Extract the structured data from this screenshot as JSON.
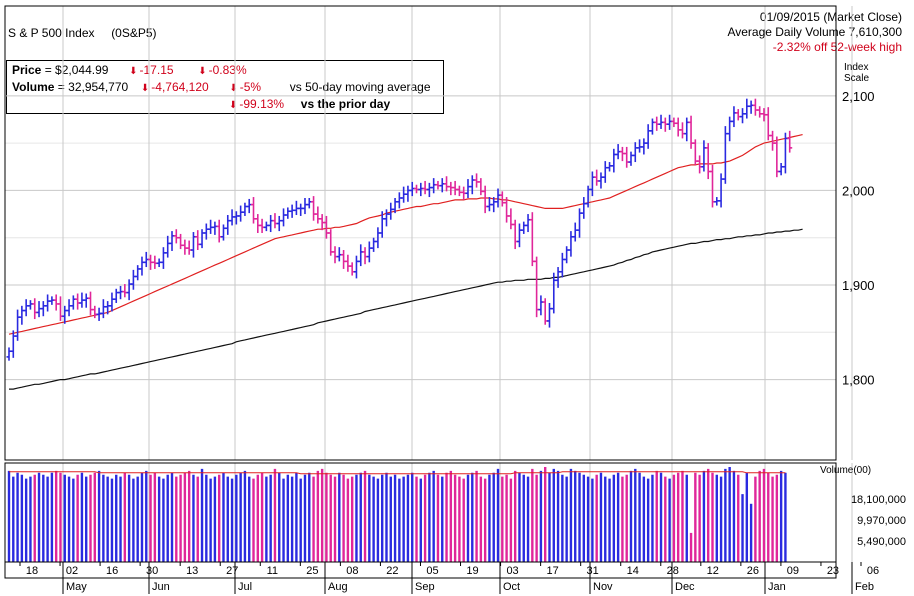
{
  "header": {
    "title": "S & P 500 Index",
    "symbol": "(0S&P5)",
    "date_line": "01/09/2015 (Market Close)",
    "avg_volume_line": "Average Daily Volume 7,610,300",
    "high_line": "-2.32% off 52-week high"
  },
  "info": {
    "price_label": "Price",
    "price_value": "= $2,044.99",
    "price_change": "-17.15",
    "price_change_pct": "-0.83%",
    "volume_label": "Volume",
    "volume_value": "= 32,954,770",
    "volume_change": "-4,764,120",
    "volume_vs50_pct": "-5%",
    "volume_vs50_text": "vs 50-day moving average",
    "volume_vsprior_pct": "-99.13%",
    "volume_vsprior_text": "vs the prior day"
  },
  "colors": {
    "up": "#2a2ae0",
    "down": "#e0269a",
    "ma50": "#e02020",
    "ma200": "#111111",
    "grid": "#c8c8c8"
  },
  "chart_data": {
    "type": "ohlc",
    "price_axis_label": "Index Scale",
    "volume_axis_label": "Volume(00)",
    "yticks": [
      1800,
      1900,
      2000,
      2100
    ],
    "ytick_labels": [
      "1,800",
      "1,900",
      "2,000",
      "2,100"
    ],
    "ylim": [
      1715,
      2140
    ],
    "volume_ticks": [
      5490000,
      9970000,
      18100000
    ],
    "volume_tick_labels": [
      "5,490,000",
      "9,970,000",
      "18,100,000"
    ],
    "day_ticks": [
      "18",
      "02",
      "16",
      "30",
      "13",
      "27",
      "11",
      "25",
      "08",
      "22",
      "05",
      "19",
      "03",
      "17",
      "31",
      "14",
      "28",
      "12",
      "26",
      "09",
      "23",
      "06"
    ],
    "months": [
      "May",
      "Jun",
      "Jul",
      "Aug",
      "Sep",
      "Oct",
      "Nov",
      "Dec",
      "Jan",
      "Feb"
    ],
    "close": [
      1830,
      1846,
      1866,
      1873,
      1878,
      1880,
      1871,
      1875,
      1878,
      1883,
      1884,
      1880,
      1867,
      1873,
      1878,
      1885,
      1881,
      1884,
      1886,
      1874,
      1869,
      1870,
      1877,
      1878,
      1885,
      1892,
      1893,
      1892,
      1901,
      1909,
      1917,
      1924,
      1927,
      1924,
      1923,
      1924,
      1934,
      1944,
      1952,
      1950,
      1942,
      1939,
      1937,
      1951,
      1943,
      1955,
      1959,
      1961,
      1962,
      1951,
      1960,
      1968,
      1972,
      1973,
      1977,
      1983,
      1985,
      1970,
      1963,
      1961,
      1963,
      1968,
      1965,
      1968,
      1974,
      1978,
      1979,
      1981,
      1981,
      1985,
      1988,
      1975,
      1970,
      1966,
      1955,
      1935,
      1930,
      1932,
      1925,
      1920,
      1914,
      1925,
      1935,
      1930,
      1939,
      1946,
      1955,
      1970,
      1975,
      1980,
      1988,
      1992,
      1996,
      2000,
      2002,
      2001,
      2002,
      2001,
      2003,
      2006,
      2005,
      2007,
      2004,
      2003,
      2001,
      1998,
      1997,
      2004,
      2011,
      2009,
      1999,
      1983,
      1985,
      1988,
      1995,
      1987,
      1973,
      1964,
      1946,
      1958,
      1963,
      1969,
      1925,
      1874,
      1882,
      1862,
      1875,
      1905,
      1914,
      1927,
      1937,
      1951,
      1958,
      1976,
      1986,
      2001,
      2014,
      2010,
      2014,
      2024,
      2026,
      2038,
      2041,
      2039,
      2030,
      2037,
      2045,
      2046,
      2050,
      2063,
      2072,
      2070,
      2072,
      2070,
      2073,
      2071,
      2064,
      2060,
      2072,
      2050,
      2031,
      2025,
      2045,
      2020,
      1988,
      1989,
      2012,
      2060,
      2073,
      2082,
      2078,
      2081,
      2089,
      2090,
      2085,
      2081,
      2080,
      2058,
      2050,
      2020,
      2025,
      2055,
      2045
    ],
    "ma50": [
      1848,
      1849,
      1850,
      1851,
      1852,
      1853,
      1854,
      1855,
      1856,
      1857,
      1858,
      1859,
      1860,
      1861,
      1862,
      1863,
      1864,
      1865,
      1866,
      1867,
      1868,
      1869,
      1870,
      1871,
      1873,
      1875,
      1877,
      1879,
      1881,
      1883,
      1885,
      1887,
      1889,
      1891,
      1893,
      1895,
      1897,
      1899,
      1901,
      1903,
      1905,
      1907,
      1909,
      1911,
      1913,
      1915,
      1917,
      1919,
      1921,
      1923,
      1925,
      1927,
      1929,
      1931,
      1933,
      1935,
      1937,
      1939,
      1941,
      1943,
      1945,
      1947,
      1949,
      1950,
      1951,
      1952,
      1953,
      1954,
      1955,
      1956,
      1957,
      1958,
      1959,
      1959,
      1960,
      1960,
      1961,
      1961,
      1962,
      1963,
      1964,
      1965,
      1967,
      1969,
      1971,
      1972,
      1973,
      1974,
      1976,
      1977,
      1978,
      1979,
      1980,
      1981,
      1982,
      1983,
      1983,
      1984,
      1985,
      1986,
      1986,
      1987,
      1988,
      1989,
      1990,
      1990,
      1990,
      1991,
      1991,
      1991,
      1992,
      1992,
      1992,
      1991,
      1991,
      1990,
      1990,
      1989,
      1988,
      1987,
      1986,
      1985,
      1984,
      1983,
      1982,
      1981,
      1981,
      1981,
      1981,
      1981,
      1982,
      1983,
      1984,
      1985,
      1986,
      1987,
      1988,
      1989,
      1990,
      1991,
      1992,
      1994,
      1996,
      1998,
      2000,
      2002,
      2004,
      2006,
      2008,
      2010,
      2012,
      2014,
      2016,
      2018,
      2020,
      2022,
      2024,
      2025,
      2026,
      2027,
      2027,
      2028,
      2028,
      2028,
      2028,
      2029,
      2029,
      2030,
      2031,
      2033,
      2035,
      2037,
      2040,
      2043,
      2046,
      2048,
      2050,
      2051,
      2052,
      2053,
      2054,
      2055,
      2056,
      2057,
      2058,
      2059
    ],
    "ma200": [
      1790,
      1790,
      1791,
      1792,
      1793,
      1794,
      1795,
      1795,
      1796,
      1797,
      1798,
      1799,
      1800,
      1800,
      1801,
      1802,
      1803,
      1804,
      1805,
      1806,
      1806,
      1807,
      1808,
      1809,
      1810,
      1811,
      1812,
      1813,
      1814,
      1815,
      1816,
      1817,
      1818,
      1819,
      1820,
      1821,
      1822,
      1823,
      1824,
      1825,
      1826,
      1827,
      1828,
      1829,
      1830,
      1831,
      1832,
      1833,
      1834,
      1835,
      1836,
      1837,
      1838,
      1840,
      1841,
      1842,
      1843,
      1844,
      1845,
      1846,
      1847,
      1848,
      1849,
      1850,
      1851,
      1852,
      1853,
      1854,
      1855,
      1856,
      1857,
      1858,
      1860,
      1861,
      1862,
      1863,
      1864,
      1865,
      1866,
      1867,
      1868,
      1869,
      1870,
      1872,
      1873,
      1874,
      1875,
      1876,
      1877,
      1878,
      1879,
      1880,
      1881,
      1882,
      1883,
      1884,
      1885,
      1886,
      1887,
      1888,
      1889,
      1890,
      1891,
      1892,
      1893,
      1894,
      1895,
      1896,
      1897,
      1898,
      1899,
      1900,
      1901,
      1902,
      1903,
      1903,
      1904,
      1904,
      1905,
      1905,
      1905,
      1906,
      1906,
      1906,
      1906,
      1907,
      1907,
      1908,
      1908,
      1909,
      1910,
      1911,
      1912,
      1913,
      1914,
      1915,
      1916,
      1917,
      1918,
      1919,
      1920,
      1921,
      1923,
      1924,
      1926,
      1927,
      1929,
      1930,
      1932,
      1933,
      1935,
      1936,
      1937,
      1938,
      1939,
      1940,
      1941,
      1942,
      1943,
      1944,
      1944,
      1945,
      1946,
      1946,
      1947,
      1948,
      1948,
      1949,
      1949,
      1950,
      1951,
      1951,
      1952,
      1952,
      1953,
      1953,
      1954,
      1955,
      1955,
      1956,
      1956,
      1957,
      1957,
      1958,
      1958,
      1959
    ],
    "volume": [
      0.94,
      0.88,
      0.92,
      0.9,
      0.86,
      0.88,
      0.9,
      0.92,
      0.9,
      0.88,
      0.92,
      0.94,
      0.92,
      0.9,
      0.88,
      0.86,
      0.9,
      0.92,
      0.88,
      0.9,
      0.92,
      0.94,
      0.9,
      0.88,
      0.86,
      0.9,
      0.88,
      0.92,
      0.9,
      0.86,
      0.88,
      0.92,
      0.94,
      0.9,
      0.92,
      0.88,
      0.86,
      0.9,
      0.92,
      0.88,
      0.9,
      0.92,
      0.94,
      0.9,
      0.88,
      0.96,
      0.9,
      0.86,
      0.88,
      0.9,
      0.92,
      0.88,
      0.86,
      0.9,
      0.92,
      0.94,
      0.88,
      0.86,
      0.9,
      0.92,
      0.88,
      0.9,
      0.96,
      0.92,
      0.86,
      0.9,
      0.88,
      0.92,
      0.86,
      0.9,
      0.92,
      0.88,
      0.94,
      0.96,
      0.92,
      0.9,
      0.88,
      0.92,
      0.9,
      0.86,
      0.88,
      0.9,
      0.92,
      0.94,
      0.9,
      0.88,
      0.86,
      0.9,
      0.92,
      0.88,
      0.9,
      0.86,
      0.88,
      0.9,
      0.92,
      0.88,
      0.86,
      0.9,
      0.92,
      0.94,
      0.9,
      0.88,
      0.92,
      0.94,
      0.9,
      0.88,
      0.86,
      0.9,
      0.92,
      0.94,
      0.88,
      0.86,
      0.9,
      0.92,
      0.96,
      0.88,
      0.9,
      0.86,
      0.94,
      0.92,
      0.9,
      0.88,
      0.96,
      0.9,
      0.94,
      0.98,
      0.92,
      0.96,
      0.94,
      0.9,
      0.88,
      0.96,
      0.94,
      0.92,
      0.9,
      0.88,
      0.86,
      0.9,
      0.92,
      0.88,
      0.86,
      0.9,
      0.92,
      0.88,
      0.9,
      0.94,
      0.96,
      0.92,
      0.88,
      0.86,
      0.9,
      0.94,
      0.92,
      0.88,
      0.86,
      0.9,
      0.92,
      0.94,
      0.9,
      0.3,
      0.92,
      0.9,
      0.94,
      0.96,
      0.92,
      0.9,
      0.88,
      0.96,
      0.98,
      0.94,
      0.9,
      0.7,
      0.92,
      0.6,
      0.88,
      0.94,
      0.96,
      0.92,
      0.88,
      0.9,
      0.94,
      0.92
    ],
    "volume_ma50": [
      0.93,
      0.93,
      0.93,
      0.93,
      0.93,
      0.93,
      0.93,
      0.93,
      0.93,
      0.93,
      0.93,
      0.93,
      0.93,
      0.93,
      0.93,
      0.93,
      0.93,
      0.93,
      0.93,
      0.93,
      0.93,
      0.92,
      0.92,
      0.92,
      0.92,
      0.92,
      0.92,
      0.92,
      0.92,
      0.92,
      0.92,
      0.92,
      0.92,
      0.92,
      0.92,
      0.92,
      0.92,
      0.92,
      0.92,
      0.92,
      0.92,
      0.92,
      0.92,
      0.92,
      0.92,
      0.92,
      0.92,
      0.92,
      0.92,
      0.92,
      0.92,
      0.92,
      0.92,
      0.92,
      0.92,
      0.92,
      0.92,
      0.92,
      0.92,
      0.92,
      0.92,
      0.92,
      0.92,
      0.92,
      0.92,
      0.92,
      0.92,
      0.92,
      0.91,
      0.91,
      0.91,
      0.91,
      0.91,
      0.91,
      0.91,
      0.91,
      0.91,
      0.91,
      0.91,
      0.91,
      0.91,
      0.91,
      0.91,
      0.91,
      0.91,
      0.91,
      0.91,
      0.91,
      0.91,
      0.91,
      0.91,
      0.91,
      0.91,
      0.91,
      0.91,
      0.91,
      0.91,
      0.91,
      0.91,
      0.91,
      0.91,
      0.91,
      0.91,
      0.91,
      0.91,
      0.91,
      0.91,
      0.91,
      0.91,
      0.91,
      0.91,
      0.91,
      0.91,
      0.91,
      0.91,
      0.91,
      0.91,
      0.91,
      0.92,
      0.92,
      0.92,
      0.92,
      0.92,
      0.92,
      0.92,
      0.92,
      0.92,
      0.92,
      0.92,
      0.93,
      0.93,
      0.93,
      0.93,
      0.93,
      0.93,
      0.93,
      0.93,
      0.93,
      0.93,
      0.93,
      0.93,
      0.93,
      0.93,
      0.93,
      0.93,
      0.93,
      0.93,
      0.93,
      0.93,
      0.93,
      0.93,
      0.93,
      0.93,
      0.93,
      0.93,
      0.93,
      0.93,
      0.93,
      0.93,
      0.93,
      0.93,
      0.93,
      0.93,
      0.93,
      0.93,
      0.93,
      0.93,
      0.93,
      0.93,
      0.93,
      0.93,
      0.93,
      0.92,
      0.92,
      0.92,
      0.92,
      0.92,
      0.92,
      0.92,
      0.92,
      0.92,
      0.92
    ]
  }
}
